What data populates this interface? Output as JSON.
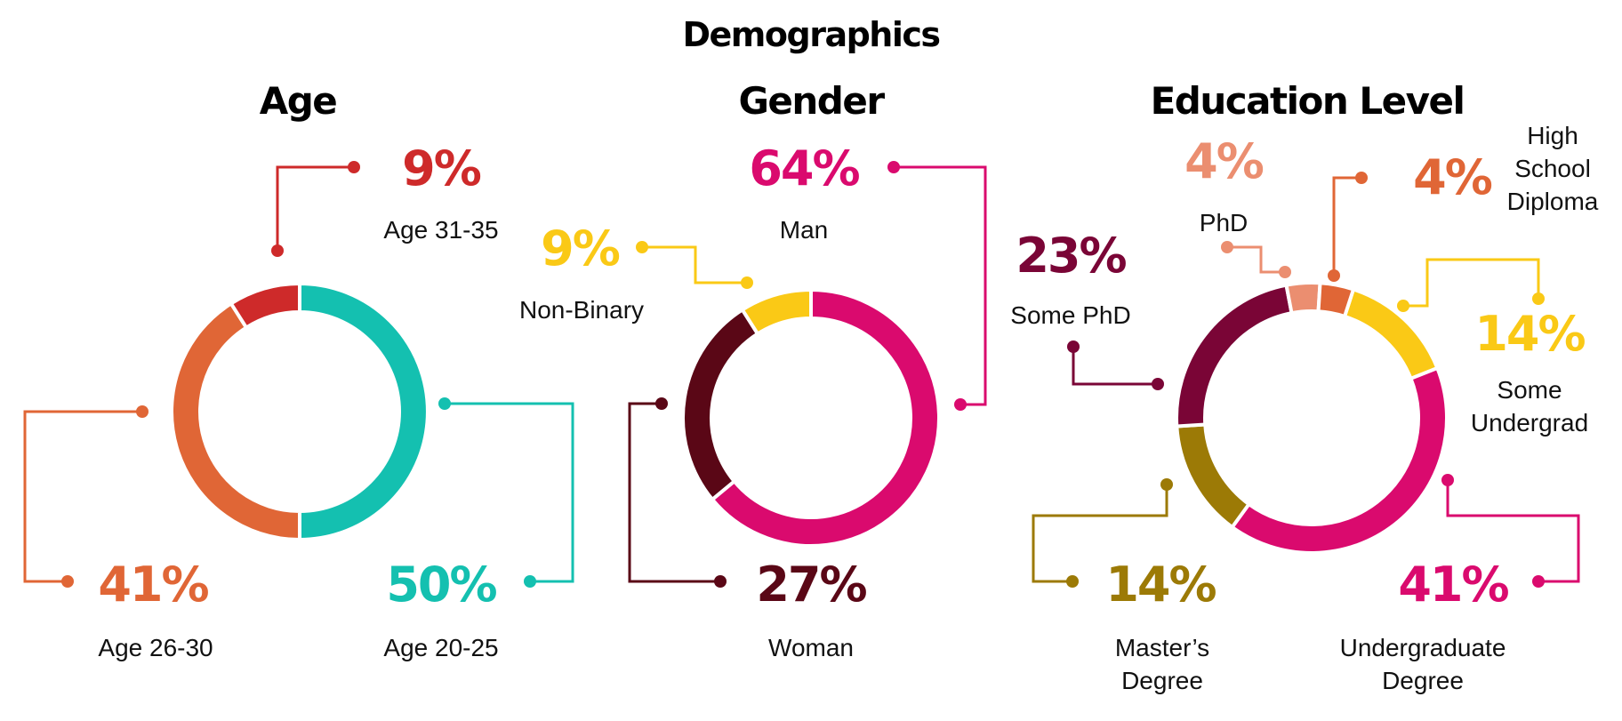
{
  "page": {
    "title": "Demographics"
  },
  "chart_data": [
    {
      "type": "pie",
      "title": "Age",
      "categories": [
        "Age 20-25",
        "Age 26-30",
        "Age 31-35"
      ],
      "values": [
        50,
        41,
        9
      ],
      "value_labels": [
        "50%",
        "41%",
        "9%"
      ],
      "colors": [
        "#14C0B0",
        "#E06636",
        "#CE2A2A"
      ]
    },
    {
      "type": "pie",
      "title": "Gender",
      "categories": [
        "Man",
        "Woman",
        "Non-Binary"
      ],
      "values": [
        64,
        27,
        9
      ],
      "value_labels": [
        "64%",
        "27%",
        "9%"
      ],
      "colors": [
        "#DA0A6E",
        "#5A0716",
        "#FAC916"
      ]
    },
    {
      "type": "pie",
      "title": "Education Level",
      "categories": [
        "Some Undergrad",
        "Undergraduate Degree",
        "Master's Degree",
        "Some PhD",
        "PhD",
        "High School Diploma"
      ],
      "category_lines": [
        [
          "Some",
          "Undergrad"
        ],
        [
          "Undergraduate",
          "Degree"
        ],
        [
          "Master’s",
          "Degree"
        ],
        [
          "Some PhD"
        ],
        [
          "PhD"
        ],
        [
          "High",
          "School",
          "Diploma"
        ]
      ],
      "values": [
        14,
        41,
        14,
        23,
        4,
        4
      ],
      "value_labels": [
        "14%",
        "41%",
        "14%",
        "23%",
        "4%",
        "4%"
      ],
      "colors": [
        "#FAC916",
        "#DA0A6E",
        "#9C7A06",
        "#7A0536",
        "#EB8E70",
        "#E06636"
      ]
    }
  ]
}
